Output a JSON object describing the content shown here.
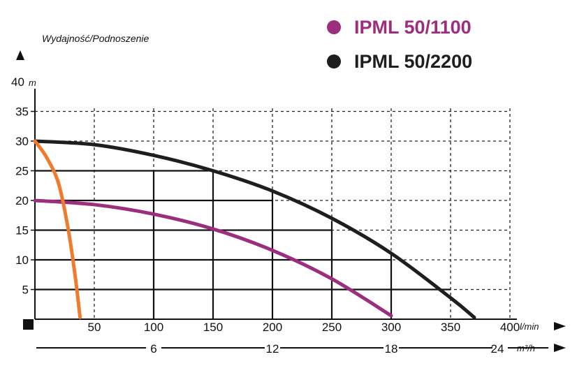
{
  "chart_data": {
    "type": "line",
    "subtitle": "Wydajność/Podnoszenie",
    "y_axis": {
      "top_label": "40",
      "unit": "m",
      "ticks": [
        5,
        10,
        15,
        20,
        25,
        30,
        35
      ],
      "ylim": [
        0,
        40
      ]
    },
    "x_axis": {
      "unit": "l/min",
      "ticks": [
        50,
        100,
        150,
        200,
        250,
        300,
        350,
        400
      ],
      "xlim": [
        0,
        400
      ]
    },
    "x_axis_secondary": {
      "unit": "m³/h",
      "ticks": [
        "6",
        "12",
        "18",
        "24"
      ]
    },
    "grid": true,
    "legend_placement": "top-right",
    "series": [
      {
        "name": "IPML 50/1100",
        "color": "#9b2f7e",
        "x": [
          0,
          50,
          100,
          150,
          200,
          250,
          300
        ],
        "y": [
          20,
          19.3,
          17.7,
          15.2,
          11.6,
          6.8,
          0.6
        ]
      },
      {
        "name": "IPML 50/2200",
        "color": "#1e1e1e",
        "x": [
          0,
          50,
          100,
          150,
          200,
          250,
          300,
          350,
          370
        ],
        "y": [
          30,
          29.4,
          27.6,
          25,
          21.6,
          17,
          11.1,
          3.6,
          0.3
        ]
      },
      {
        "color": "#f07b2d",
        "x": [
          0,
          10,
          20,
          28,
          34,
          38
        ],
        "y": [
          30,
          27.2,
          22.8,
          15.2,
          7.1,
          0.3
        ]
      }
    ]
  }
}
